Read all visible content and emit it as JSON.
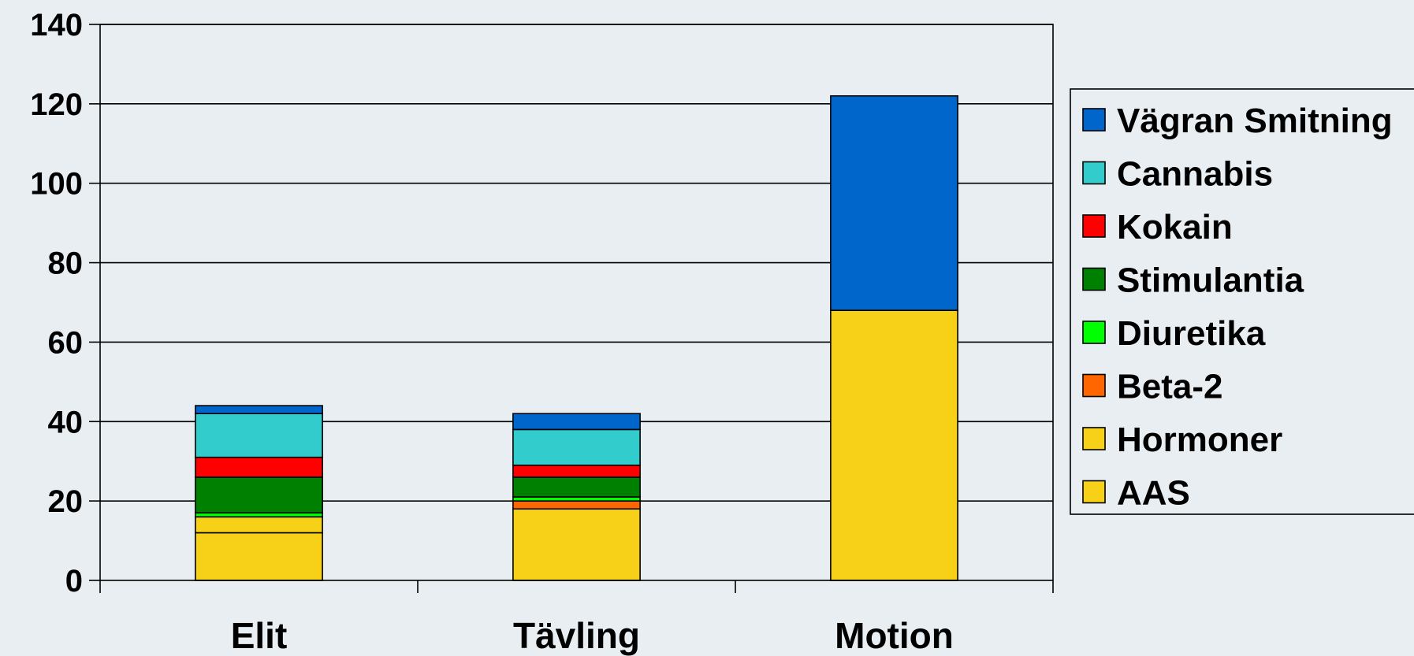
{
  "chart_data": {
    "type": "bar",
    "stacked": true,
    "title": "",
    "xlabel": "",
    "ylabel": "",
    "ylim": [
      0,
      140
    ],
    "yticks": [
      0,
      20,
      40,
      60,
      80,
      100,
      120,
      140
    ],
    "grid": true,
    "legend_position": "right",
    "categories": [
      "Elit",
      "Tävling",
      "Motion"
    ],
    "series": [
      {
        "name": "AAS",
        "color": "#F7D117",
        "values": [
          12,
          18,
          68
        ]
      },
      {
        "name": "Hormoner",
        "color": "#F7D117",
        "values": [
          4,
          0,
          0
        ]
      },
      {
        "name": "Beta-2",
        "color": "#FF6600",
        "values": [
          0,
          2,
          0
        ]
      },
      {
        "name": "Diuretika",
        "color": "#00FF00",
        "values": [
          1,
          1,
          0
        ]
      },
      {
        "name": "Stimulantia",
        "color": "#008000",
        "values": [
          9,
          5,
          0
        ]
      },
      {
        "name": "Kokain",
        "color": "#FF0000",
        "values": [
          5,
          3,
          0
        ]
      },
      {
        "name": "Cannabis",
        "color": "#33CCCC",
        "values": [
          11,
          9,
          0
        ]
      },
      {
        "name": "Vägran Smitning",
        "color": "#0066CC",
        "values": [
          2,
          4,
          54
        ]
      }
    ]
  }
}
